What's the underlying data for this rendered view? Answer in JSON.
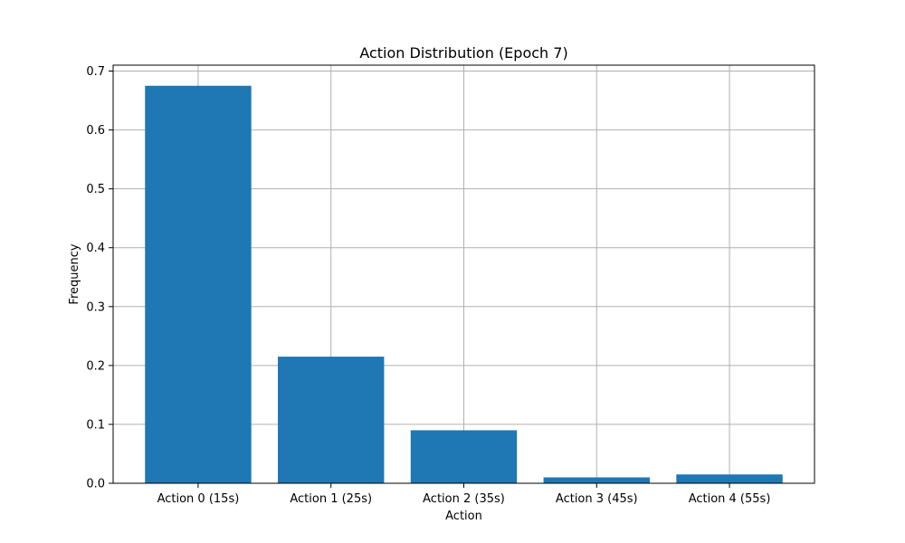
{
  "chart_data": {
    "type": "bar",
    "title": "Action Distribution (Epoch 7)",
    "xlabel": "Action",
    "ylabel": "Frequency",
    "categories": [
      "Action 0 (15s)",
      "Action 1 (25s)",
      "Action 2 (35s)",
      "Action 3 (45s)",
      "Action 4 (55s)"
    ],
    "values": [
      0.675,
      0.215,
      0.09,
      0.01,
      0.015
    ],
    "ylim": [
      0,
      0.71
    ],
    "yticks": [
      0.0,
      0.1,
      0.2,
      0.3,
      0.4,
      0.5,
      0.6,
      0.7
    ],
    "ytick_labels": [
      "0.0",
      "0.1",
      "0.2",
      "0.3",
      "0.4",
      "0.5",
      "0.6",
      "0.7"
    ],
    "grid": true,
    "bar_color": "#1f77b4"
  }
}
